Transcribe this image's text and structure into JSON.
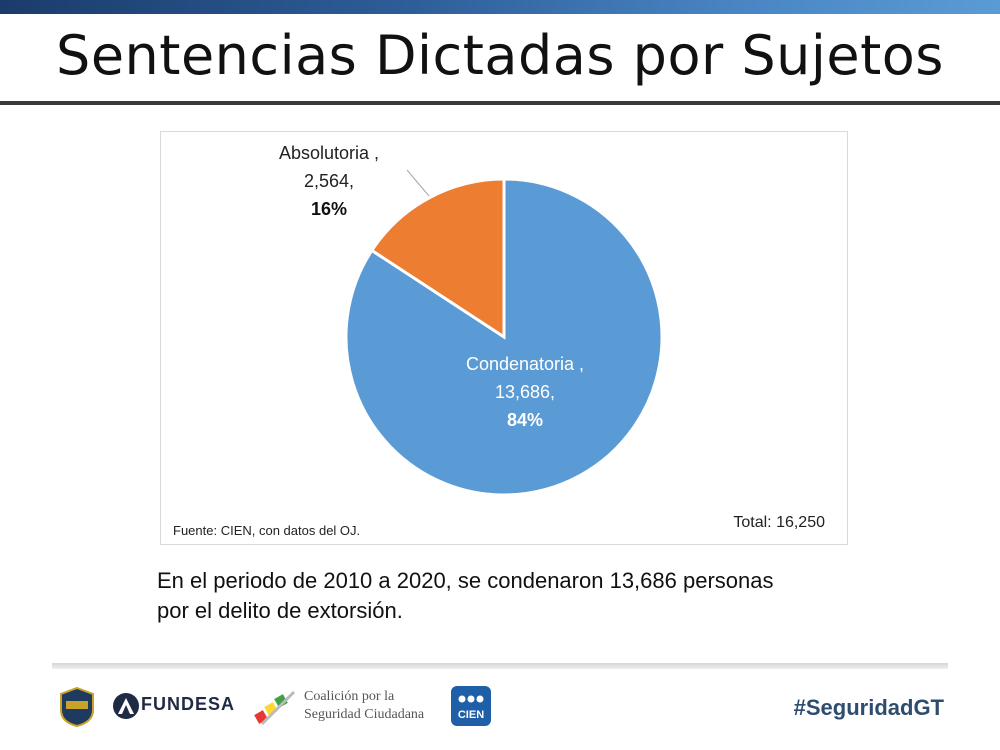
{
  "header": {
    "title": "Sentencias Dictadas por Sujetos"
  },
  "chart_data": {
    "type": "pie",
    "slices": [
      {
        "label": "Absolutoria ,",
        "value_text": "2,564,",
        "pct_text": "16%",
        "value": 2564,
        "percent": 16,
        "color": "#ed7d31"
      },
      {
        "label": "Condenatoria ,",
        "value_text": "13,686,",
        "pct_text": "84%",
        "value": 13686,
        "percent": 84,
        "color": "#5b9bd5"
      }
    ],
    "source": "Fuente: CIEN, con datos del OJ.",
    "total": "Total: 16,250"
  },
  "caption": {
    "line1": "En el periodo de 2010 a 2020, se condenaron 13,686 personas",
    "line2": "por el delito de extorsión."
  },
  "footer": {
    "logo_fundesa": "FUNDESA",
    "logo_coalicion_1": "Coalición por la",
    "logo_coalicion_2": "Seguridad Ciudadana",
    "logo_cien": "CIEN",
    "hashtag": "#SeguridadGT"
  }
}
